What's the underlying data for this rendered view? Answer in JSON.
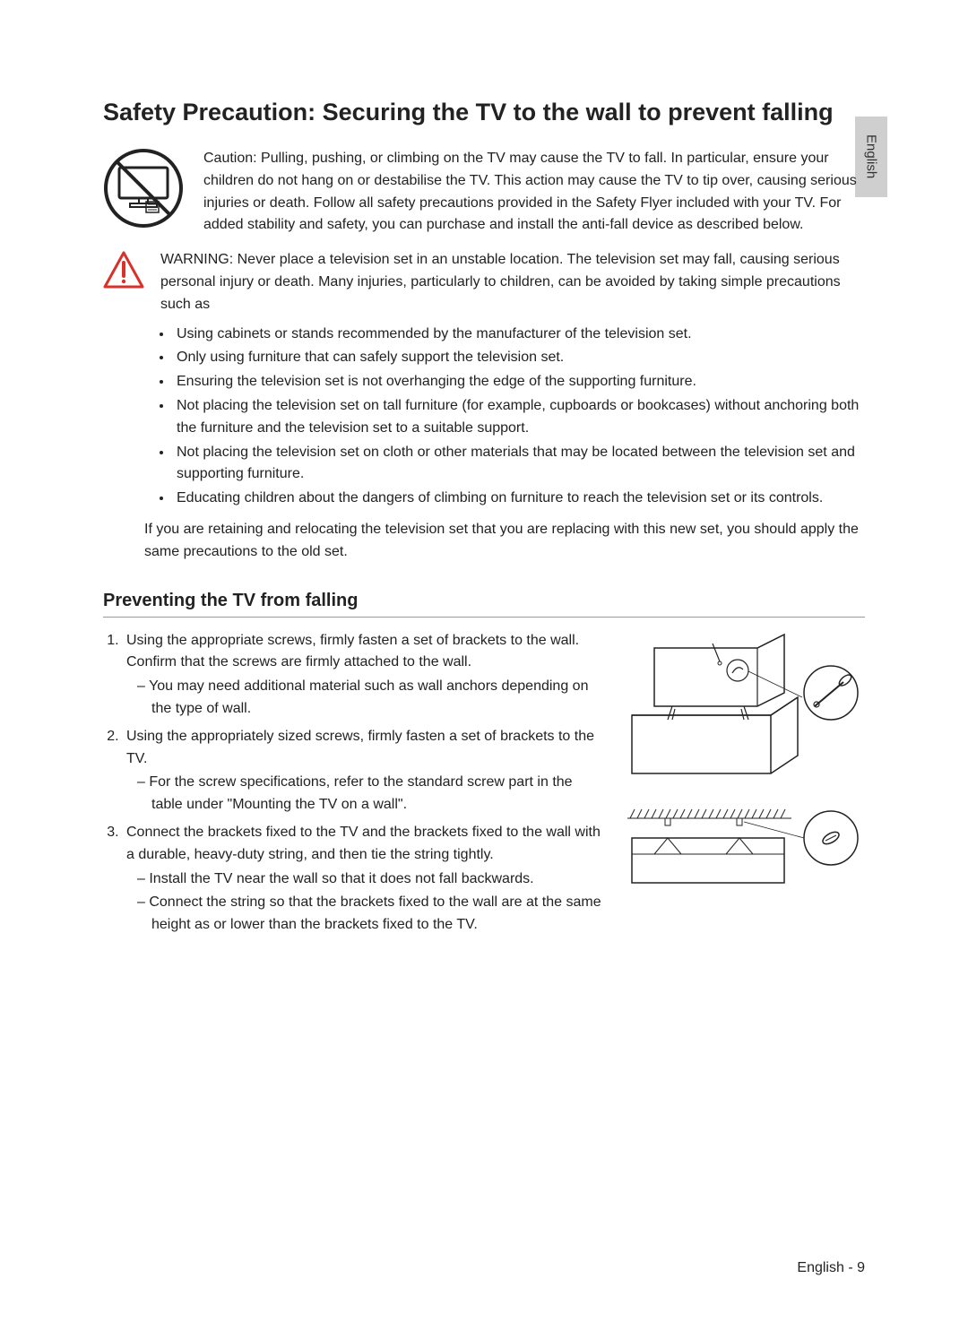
{
  "langTab": "English",
  "title": "Safety Precaution: Securing the TV to the wall to prevent falling",
  "caution": {
    "label": "Caution",
    "text": ": Pulling, pushing, or climbing on the TV may cause the TV to fall. In particular, ensure your children do not hang on or destabilise the TV. This action may cause the TV to tip over, causing serious injuries or death. Follow all safety precautions provided in the Safety Flyer included with your TV. For added stability and safety, you can purchase and install the anti-fall device as described below."
  },
  "warning": {
    "label": "WARNING",
    "text": ": Never place a television set in an unstable location. The television set may fall, causing serious personal injury or death. Many injuries, particularly to children, can be avoided by taking simple precautions such as"
  },
  "precautions": [
    "Using cabinets or stands recommended by the manufacturer of the television set.",
    "Only using furniture that can safely support the television set.",
    "Ensuring the television set is not overhanging the edge of the supporting furniture.",
    "Not placing the television set on tall furniture (for example, cupboards or bookcases) without anchoring both the furniture and the television set to a suitable support.",
    "Not placing the television set on cloth or other materials that may be located between the television set and supporting furniture.",
    "Educating children about the dangers of climbing on furniture to reach the television set or its controls."
  ],
  "postList": "If you are retaining and relocating the television set that you are replacing with this new set, you should apply the same precautions to the old set.",
  "subhead": "Preventing the TV from falling",
  "steps": [
    {
      "text": "Using the appropriate screws, firmly fasten a set of brackets to the wall. Confirm that the screws are firmly attached to the wall.",
      "sub": [
        "You may need additional material such as wall anchors depending on the type of wall."
      ]
    },
    {
      "text": "Using the appropriately sized screws, firmly fasten a set of brackets to the TV.",
      "sub": [
        "For the screw specifications, refer to the standard screw part in the table under \"Mounting the TV on a wall\"."
      ]
    },
    {
      "text": "Connect the brackets fixed to the TV and the brackets fixed to the wall with a durable, heavy-duty string, and then tie the string tightly.",
      "sub": [
        "Install the TV near the wall so that it does not fall backwards.",
        "Connect the string so that the brackets fixed to the wall are at the same height as or lower than the brackets fixed to the TV."
      ]
    }
  ],
  "footer": "English - 9",
  "colors": {
    "warningRed": "#d9302a",
    "text": "#222222",
    "tab": "#cfcfcf",
    "rule": "#999999"
  }
}
